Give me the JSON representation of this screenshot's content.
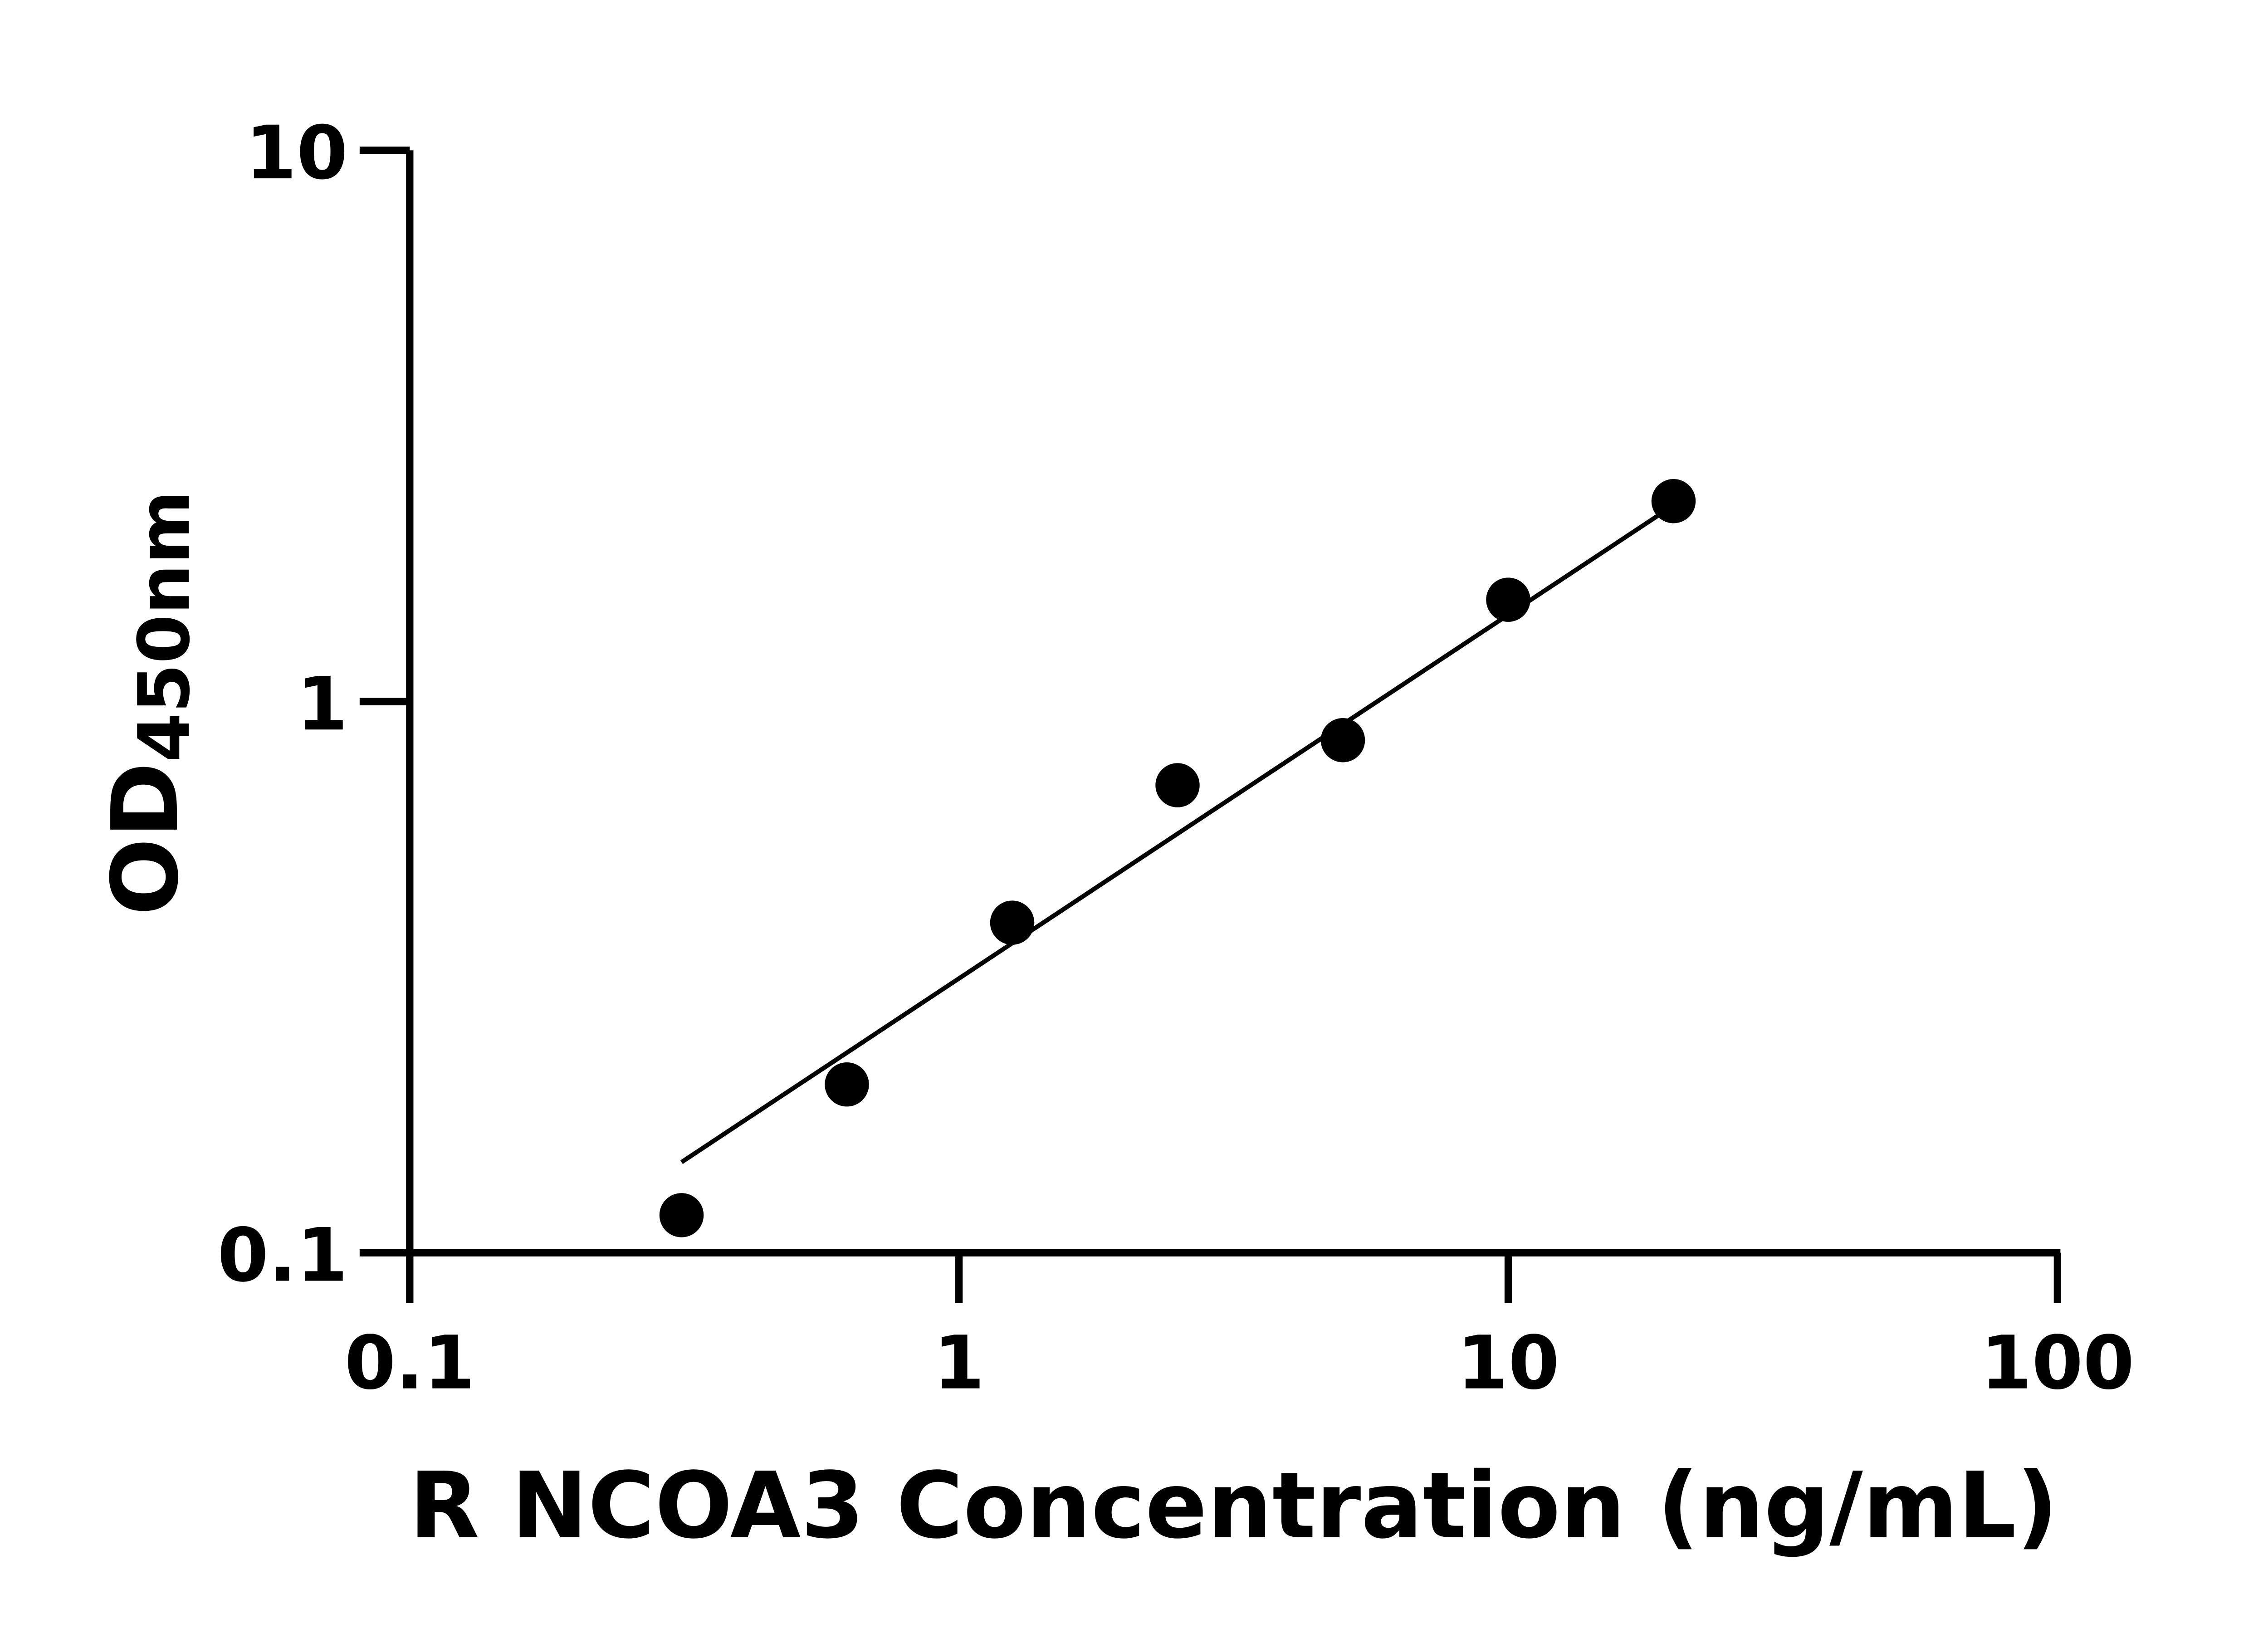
{
  "chart_data": {
    "type": "scatter",
    "title": "",
    "xlabel": "R NCOA3 Concentration (ng/mL)",
    "ylabel": {
      "main": "OD",
      "subscript": "450nm"
    },
    "xscale": "log",
    "yscale": "log",
    "xlim": [
      0.1,
      100
    ],
    "ylim": [
      0.1,
      10
    ],
    "xticks": [
      "0.1",
      "1",
      "10",
      "100"
    ],
    "yticks": [
      "0.1",
      "1",
      "10"
    ],
    "grid": false,
    "points": {
      "x": [
        0.3125,
        0.625,
        1.25,
        2.5,
        5,
        10,
        20
      ],
      "y": [
        0.117,
        0.202,
        0.397,
        0.705,
        0.851,
        1.53,
        2.31
      ]
    },
    "fit_line": {
      "x": [
        0.3125,
        20
      ],
      "y": [
        0.146,
        2.27
      ]
    },
    "colors": {
      "marker": "#000000",
      "line": "#000000",
      "axis": "#000000"
    }
  }
}
